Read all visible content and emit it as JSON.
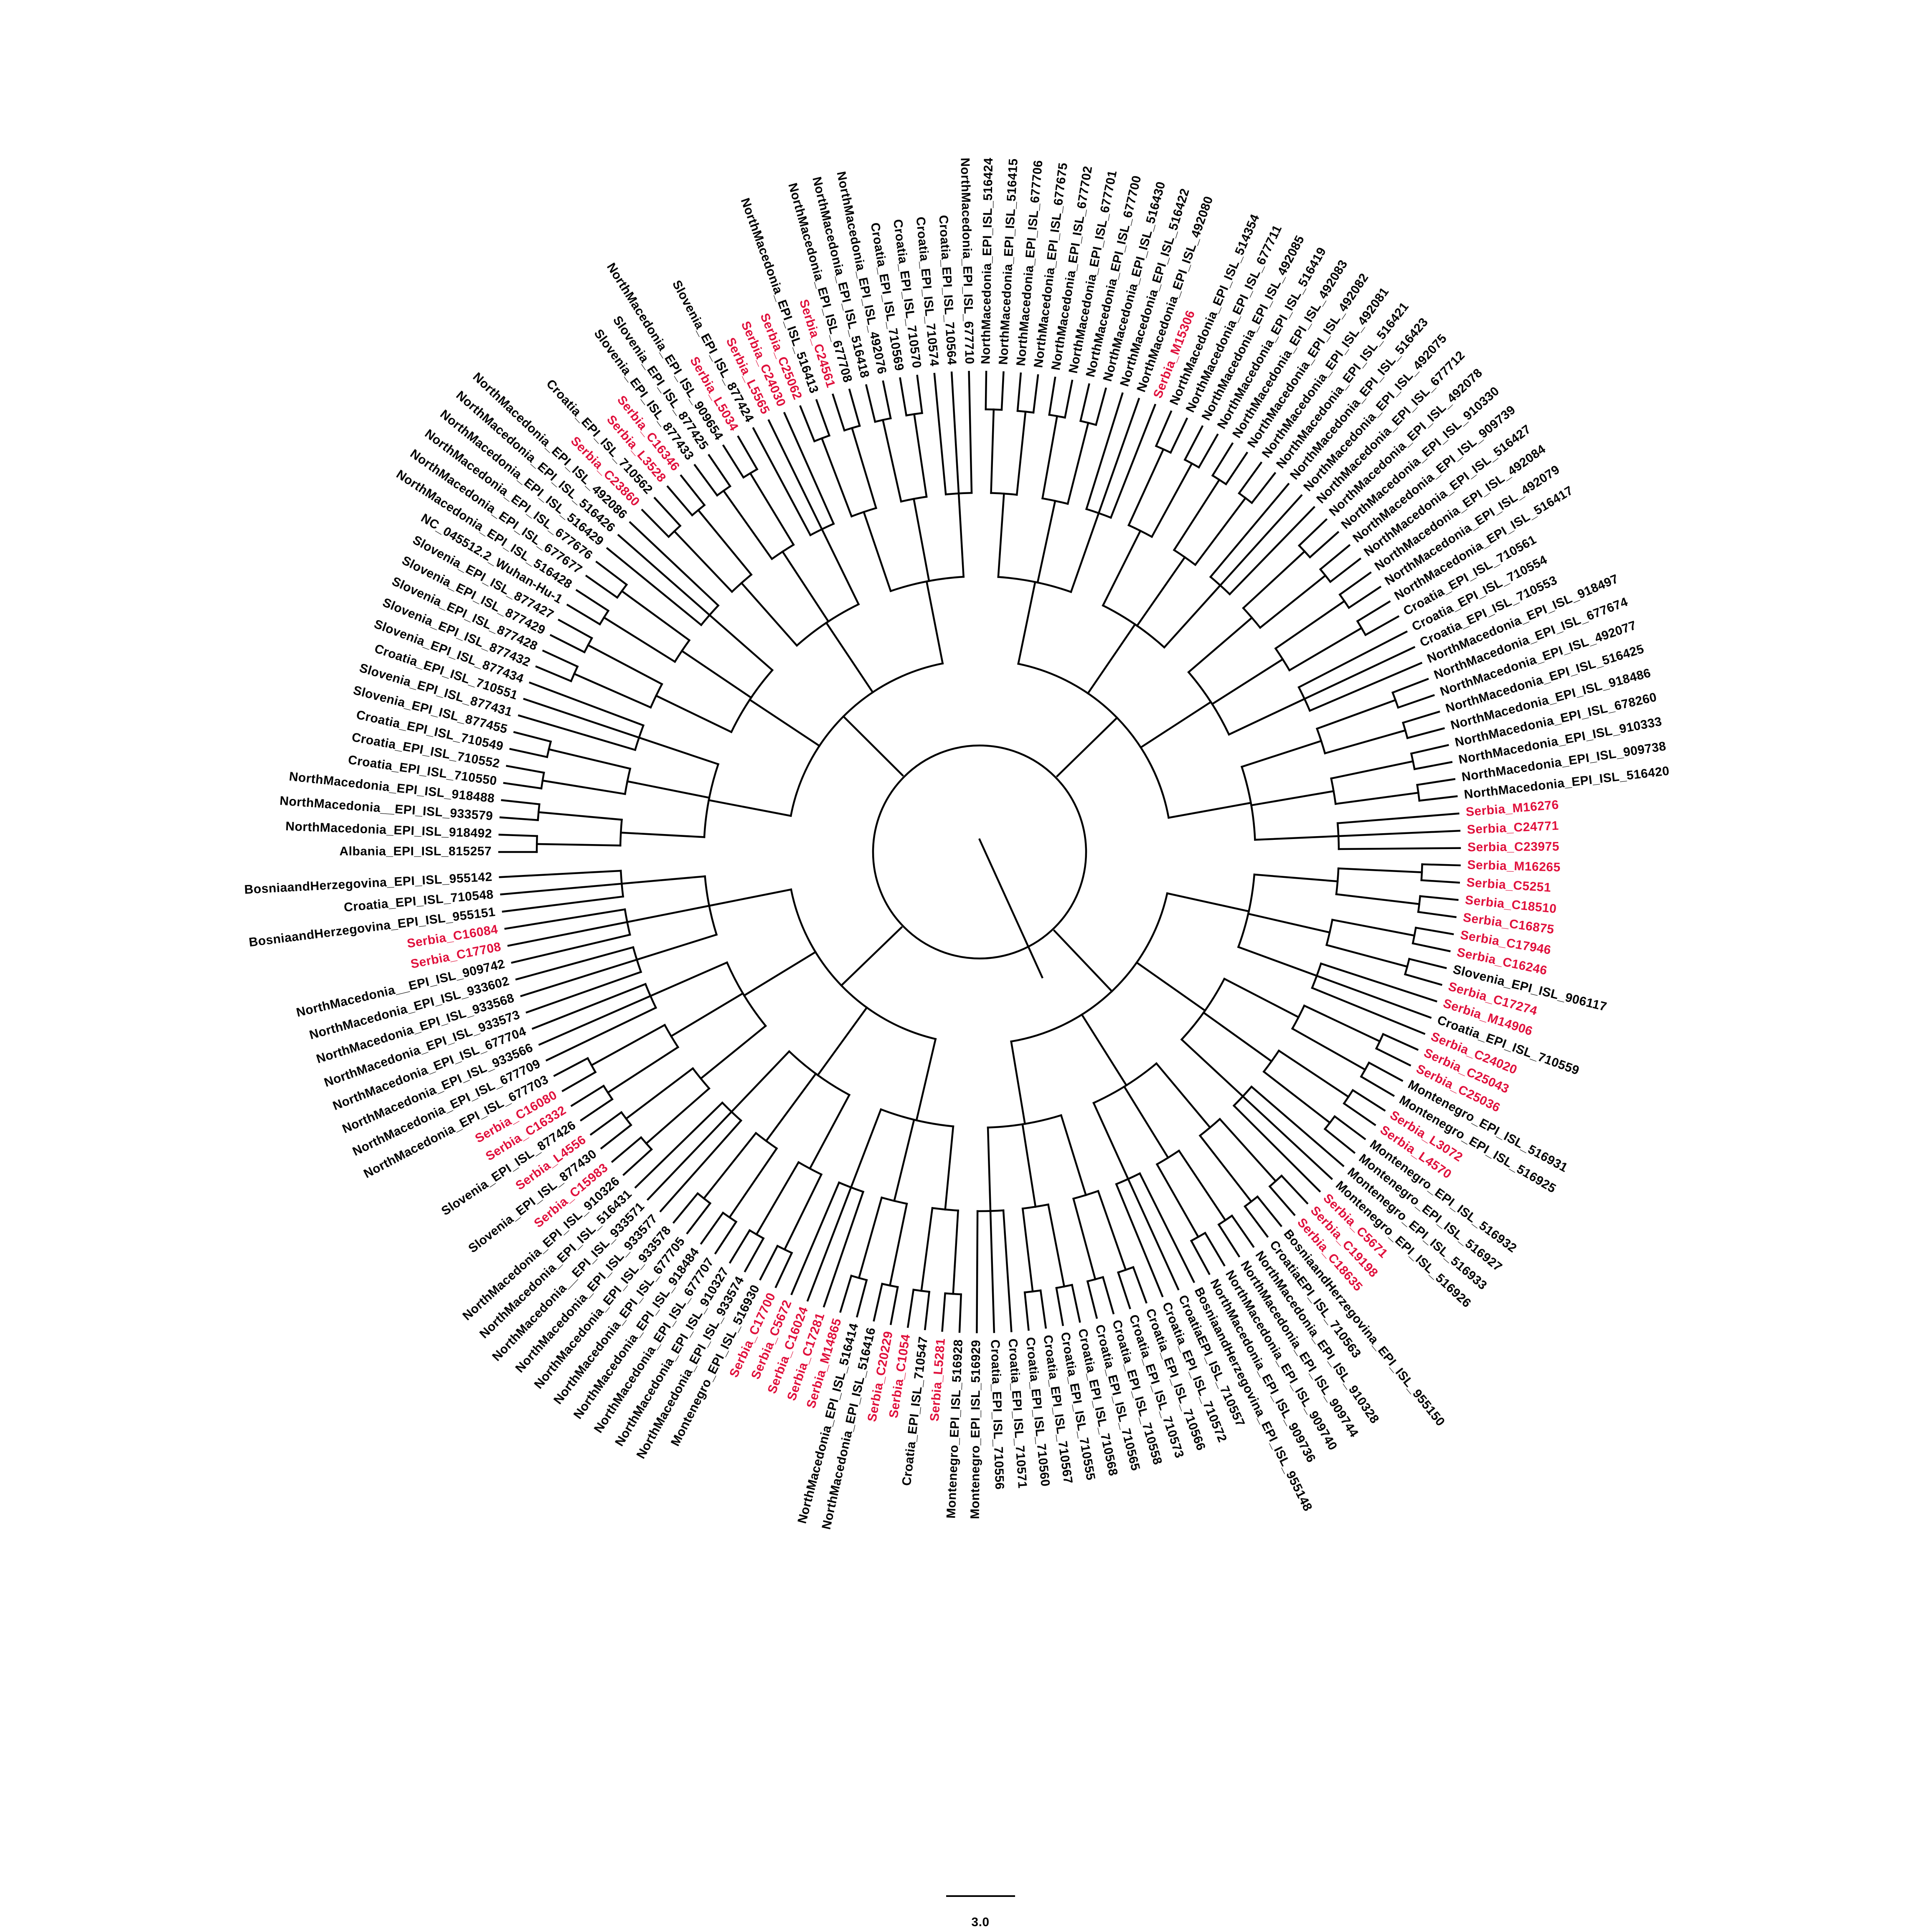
{
  "figure": {
    "type": "circular-phylogenetic-tree",
    "highlight_rule": "labels beginning with Serbia_ are drawn in the highlight color",
    "colors": {
      "default_label": "#000000",
      "highlight_label": "#e0103c",
      "branch": "#000000"
    },
    "scale_bar": {
      "label": "3.0"
    },
    "leaves": [
      "Albania_EPI_ISL_815257",
      "NorthMacedonia_EPI_ISL_918492",
      "NorthMacedonia__EPI_ISL_933579",
      "NorthMacedonia_EPI_ISL_918488",
      "Croatia_EPI_ISL_710550",
      "Croatia_EPI_ISL_710552",
      "Croatia_EPI_ISL_710549",
      "Slovenia_EPI_ISL_877455",
      "Slovenia_EPI_ISL_877431",
      "Croatia_EPI_ISL_710551",
      "Slovenia_EPI_ISL_877434",
      "Slovenia_EPI_ISL_877432",
      "Slovenia_EPI_ISL_877428",
      "Slovenia_EPI_ISL_877429",
      "Slovenia_EPI_ISL_877427",
      "NC_045512.2_Wuhan-Hu-1",
      "NorthMacedonia_EPI_ISL_516428",
      "NorthMacedonia_EPI_ISL_677677",
      "NorthMacedonia_EPI_ISL_677676",
      "NorthMacedonia_EPI_ISL_516429",
      "NorthMacedonia_EPI_ISL_516426",
      "NorthMacedonia_EPI_ISL_492086",
      "Serbia_C23860",
      "Croatia_EPI_ISL_710562",
      "Serbia_L3528",
      "Serbia_C16346",
      "Slovenia_EPI_ISL_877433",
      "Slovenia_EPI_ISL_877425",
      "NorthMacedonia_EPI_ISL_909654",
      "Serbia_L5034",
      "Slovenia_EPI_ISL_877424",
      "Serbia_L5565",
      "Serbia_C24030",
      "Serbia_C25062",
      "NorthMacedonia_EPI_ISL_516413",
      "Serbia_C24561",
      "NorthMacedonia_EPI_ISL_677708",
      "NorthMacedonia_EPI_ISL_516418",
      "NorthMacedonia_EPI_ISL_492076",
      "Croatia_EPI_ISL_710569",
      "Croatia_EPI_ISL_710570",
      "Croatia_EPI_ISL_710574",
      "Croatia_EPI_ISL_710564",
      "NorthMacedonia_EPI_ISL_677710",
      "NorthMacedonia_EPI_ISL_516424",
      "NorthMacedonia_EPI_ISL_516415",
      "NorthMacedonia_EPI_ISL_677706",
      "NorthMacedonia_EPI_ISL_677675",
      "NorthMacedonia_EPI_ISL_677702",
      "NorthMacedonia_EPI_ISL_677701",
      "NorthMacedonia_EPI_ISL_677700",
      "NorthMacedonia_EPI_ISL_516430",
      "NorthMacedonia_EPI_ISL_516422",
      "NorthMacedonia_EPI_ISL_492080",
      "Serbia_M15306",
      "NorthMacedonia_EPI_ISL_514354",
      "NorthMacedonia_EPI_ISL_677711",
      "NorthMacedonia_EPI_ISL_492085",
      "NorthMacedonia_EPI_ISL_516419",
      "NorthMacedonia_EPI_ISL_492083",
      "NorthMacedonia_EPI_ISL_492082",
      "NorthMacedonia_EPI_ISL_492081",
      "NorthMacedonia_EPI_ISL_516421",
      "NorthMacedonia_EPI_ISL_516423",
      "NorthMacedonia_EPI_ISL_492075",
      "NorthMacedonia_EPI_ISL_677712",
      "NorthMacedonia_EPI_ISL_492078",
      "NorthMacedonia_EPI_ISL_910330",
      "NorthMacedonia_EPI_ISL_909739",
      "NorthMacedonia_EPI_ISL_516427",
      "NorthMacedonia_EPI_ISL_492084",
      "NorthMacedonia_EPI_ISL_492079",
      "NorthMacedonia_EPI_ISL_516417",
      "Croatia_EPI_ISL_710561",
      "Croatia_EPI_ISL_710554",
      "Croatia_EPI_ISL_710553",
      "NorthMacedonia_EPI_ISL_918497",
      "NorthMacedonia_EPI_ISL_677674",
      "NorthMacedonia_EPI_ISL_492077",
      "NorthMacedonia_EPI_ISL_516425",
      "NorthMacedonia_EPI_ISL_918486",
      "NorthMacedonia_EPI_ISL_678260",
      "NorthMacedonia_EPI_ISL_910333",
      "NorthMacedonia_EPI_ISL_909738",
      "NorthMacedonia_EPI_ISL_516420",
      "Serbia_M16276",
      "Serbia_C24771",
      "Serbia_C23975",
      "Serbia_M16265",
      "Serbia_C5251",
      "Serbia_C18510",
      "Serbia_C16875",
      "Serbia_C17946",
      "Serbia_C16246",
      "Slovenia_EPI_ISL_906117",
      "Serbia_C17274",
      "Serbia_M14906",
      "Croatia_EPI_ISL_710559",
      "Serbia_C24020",
      "Serbia_C25043",
      "Serbia_C25036",
      "Montenegro_EPI_ISL_516931",
      "Montenegro_EPI_ISL_516925",
      "Serbia_L3072",
      "Serbia_L4570",
      "Montenegro_EPI_ISL_516932",
      "Montenegro_EPI_ISL_516927",
      "Montenegro_EPI_ISL_516933",
      "Montenegro_EPI_ISL_516926",
      "Serbia_C5671",
      "Serbia_C19198",
      "Serbia_C18635",
      "BosniaandHerzegovina_EPI_ISL_955150",
      "CroatiaEPI_ISL_710563",
      "NorthMacedonia_EPI_ISL_910328",
      "NorthMacedonia_EPI_ISL_909744",
      "NorthMacedonia_EPI_ISL_909740",
      "NorthMacedonia_EPI_ISL_909736",
      "BosniaandHerzegovina_EPI_ISL_955148",
      "CroatiaEPI_ISL_710557",
      "Croatia_EPI_ISL_710572",
      "Croatia_EPI_ISL_710566",
      "Croatia_EPI_ISL_710573",
      "Croatia_EPI_ISL_710558",
      "Croatia_EPI_ISL_710565",
      "Croatia_EPI_ISL_710568",
      "Croatia_EPI_ISL_710555",
      "Croatia_EPI_ISL_710567",
      "Croatia_EPI_ISL_710560",
      "Croatia_EPI_ISL_710571",
      "Croatia_EPI_ISL_710556",
      "Montenegro_EPI_ISL_516929",
      "Montenegro_EPI_ISL_516928",
      "Serbia_L5281",
      "Croatia_EPI_ISL_710547",
      "Serbia_C1054",
      "Serbia_C20229",
      "NorthMacedonia_EPI_ISL_516416",
      "NorthMacedonia_EPI_ISL_516414",
      "Serbia_M14865",
      "Serbia_C17281",
      "Serbia_C16024",
      "Serbia_C5672",
      "Serbia_C17700",
      "Montenegro_EPI_ISL_516930",
      "NorthMacedonia_EPI_ISL_933574",
      "NorthMacedonia_EPI_ISL_910327",
      "NorthMacedonia_EPI_ISL_677707",
      "NorthMacedonia_EPI_ISL_918484",
      "NorthMacedonia_EPI_ISL_677705",
      "NorthMacedonia_EPI_ISL_933578",
      "NorthMacedonia_EPI_ISL_933577",
      "NorthMacedonia__EPI_ISL_933571",
      "NorthMacedonia_EPI_ISL_516431",
      "NorthMacedonia_EPI_ISL_910326",
      "Serbia_C15983",
      "Slovenia_EPI_ISL_877430",
      "Serbia_L4556",
      "Slovenia_EPI_ISL_877426",
      "Serbia_C16332",
      "Serbia_C16080",
      "NorthMacedonia_EPI_ISL_677703",
      "NorthMacedonia_EPI_ISL_677709",
      "NorthMacedonia_EPI_ISL_933566",
      "NorthMacedonia_EPI_ISL_677704",
      "NorthMacedonia_EPI_ISL_933573",
      "NorthMacedonia_EPI_ISL_933568",
      "NorthMacedonia_EPI_ISL_933602",
      "NorthMacedonia__EPI_ISL_909742",
      "Serbia_C17708",
      "Serbia_C16084",
      "BosniaandHerzegovina_EPI_ISL_955151",
      "Croatia_EPI_ISL_710548",
      "BosniaandHerzegovina_EPI_ISL_955142"
    ]
  }
}
